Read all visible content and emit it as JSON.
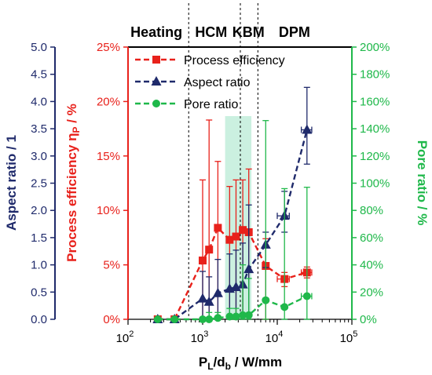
{
  "chart_data": {
    "type": "scatter",
    "x_scale": "log",
    "xlim": [
      100,
      100000
    ],
    "xlabel": "P_L/d_b / W/mm",
    "x_ticks": [
      {
        "value": 100,
        "base": "10",
        "exp": "2"
      },
      {
        "value": 1000,
        "base": "10",
        "exp": "3"
      },
      {
        "value": 10000,
        "base": "10",
        "exp": "4"
      },
      {
        "value": 100000,
        "base": "10",
        "exp": "5"
      }
    ],
    "axes": {
      "aspect": {
        "label": "Aspect ratio / 1",
        "color": "#1f2a6b",
        "ylim": [
          0,
          5
        ],
        "ticks": [
          "0.0",
          "0.5",
          "1.0",
          "1.5",
          "2.0",
          "2.5",
          "3.0",
          "3.5",
          "4.0",
          "4.5",
          "5.0"
        ]
      },
      "efficiency": {
        "label_main": "Process efficiency η",
        "label_sub": "P",
        "label_tail": " / %",
        "color": "#e8211b",
        "ylim": [
          0,
          25
        ],
        "ticks": [
          "0%",
          "5%",
          "10%",
          "15%",
          "20%",
          "25%"
        ]
      },
      "pore": {
        "label": "Pore ratio / %",
        "color": "#1fb84a",
        "ylim": [
          0,
          200
        ],
        "ticks": [
          "0%",
          "20%",
          "40%",
          "60%",
          "80%",
          "100%",
          "120%",
          "140%",
          "160%",
          "180%",
          "200%"
        ]
      }
    },
    "regimes": [
      {
        "name": "Heating",
        "x_center": 240
      },
      {
        "name": "HCM",
        "x_center": 1300
      },
      {
        "name": "KBM",
        "x_center": 4100
      },
      {
        "name": "DPM",
        "x_center": 17000
      }
    ],
    "regime_boundaries": [
      650,
      3200,
      5500
    ],
    "highlight_band": {
      "x_from": 2000,
      "x_to": 4500,
      "color": "#b9ebd6"
    },
    "legend": [
      {
        "label": "Process efficiency",
        "series": "efficiency",
        "marker": "square"
      },
      {
        "label": "Aspect ratio",
        "series": "aspect",
        "marker": "triangle"
      },
      {
        "label": "Pore ratio",
        "series": "pore",
        "marker": "circle"
      }
    ],
    "series": [
      {
        "key": "efficiency",
        "color": "#e8211b",
        "marker": "square",
        "points": [
          {
            "x": 250,
            "y": 0,
            "ylo": 0,
            "yhi": 0
          },
          {
            "x": 420,
            "y": 0,
            "ylo": 0,
            "yhi": 0
          },
          {
            "x": 1000,
            "y": 5.4,
            "ylo": 0,
            "yhi": 12.8
          },
          {
            "x": 1220,
            "y": 6.4,
            "ylo": 0,
            "yhi": 18.3
          },
          {
            "x": 1600,
            "y": 8.4,
            "ylo": 0,
            "yhi": 14.5
          },
          {
            "x": 2300,
            "y": 7.3,
            "ylo": 0,
            "yhi": 12.2
          },
          {
            "x": 2800,
            "y": 7.6,
            "ylo": 0,
            "yhi": 12.8
          },
          {
            "x": 3450,
            "y": 8.2,
            "ylo": 0,
            "yhi": 12.8
          },
          {
            "x": 4150,
            "y": 8.0,
            "ylo": 0,
            "yhi": 13.8
          },
          {
            "x": 7000,
            "y": 4.9,
            "ylo": 0,
            "yhi": 7.4
          },
          {
            "x": 12500,
            "y": 3.7,
            "ylo": 3.0,
            "yhi": 4.3,
            "xlo": 10000,
            "xhi": 14500
          },
          {
            "x": 25000,
            "y": 4.3,
            "ylo": 3.8,
            "yhi": 4.8,
            "xlo": 21000,
            "xhi": 29000
          }
        ]
      },
      {
        "key": "aspect",
        "color": "#1f2a6b",
        "marker": "triangle",
        "points": [
          {
            "x": 250,
            "y": 0,
            "ylo": 0,
            "yhi": 0
          },
          {
            "x": 420,
            "y": 0,
            "ylo": 0,
            "yhi": 0
          },
          {
            "x": 1000,
            "y": 0.38,
            "ylo": 0,
            "yhi": 0.88
          },
          {
            "x": 1220,
            "y": 0.32,
            "ylo": 0,
            "yhi": 0.78
          },
          {
            "x": 1600,
            "y": 0.48,
            "ylo": 0,
            "yhi": 1.1
          },
          {
            "x": 2300,
            "y": 0.56,
            "ylo": 0,
            "yhi": 1.2
          },
          {
            "x": 2800,
            "y": 0.59,
            "ylo": 0,
            "yhi": 1.27
          },
          {
            "x": 3450,
            "y": 0.64,
            "ylo": 0,
            "yhi": 1.4
          },
          {
            "x": 4150,
            "y": 0.92,
            "ylo": 0,
            "yhi": 2.1
          },
          {
            "x": 7000,
            "y": 1.37,
            "ylo": 0.95,
            "yhi": 1.6
          },
          {
            "x": 12500,
            "y": 1.9,
            "ylo": 1.6,
            "yhi": 2.35,
            "xlo": 10000,
            "xhi": 14500
          },
          {
            "x": 25000,
            "y": 3.48,
            "ylo": 2.85,
            "yhi": 4.26,
            "xlo": 21000,
            "xhi": 29000
          }
        ]
      },
      {
        "key": "pore",
        "color": "#1fb84a",
        "marker": "circle",
        "points": [
          {
            "x": 250,
            "y": 0,
            "ylo": 0,
            "yhi": 0
          },
          {
            "x": 420,
            "y": 0,
            "ylo": 0,
            "yhi": 0
          },
          {
            "x": 1000,
            "y": 0,
            "ylo": 0,
            "yhi": 0
          },
          {
            "x": 1220,
            "y": 0,
            "ylo": 0,
            "yhi": 5
          },
          {
            "x": 1600,
            "y": 1,
            "ylo": 0,
            "yhi": 5
          },
          {
            "x": 2300,
            "y": 2,
            "ylo": 0,
            "yhi": 8
          },
          {
            "x": 2800,
            "y": 2,
            "ylo": 0,
            "yhi": 8
          },
          {
            "x": 3450,
            "y": 3,
            "ylo": 0,
            "yhi": 40
          },
          {
            "x": 4150,
            "y": 3,
            "ylo": 0,
            "yhi": 30
          },
          {
            "x": 7000,
            "y": 14,
            "ylo": 0,
            "yhi": 146
          },
          {
            "x": 12500,
            "y": 9,
            "ylo": 0,
            "yhi": 96
          },
          {
            "x": 25000,
            "y": 17,
            "ylo": 0,
            "yhi": 97,
            "xlo": 21000,
            "xhi": 29000
          }
        ]
      }
    ]
  }
}
